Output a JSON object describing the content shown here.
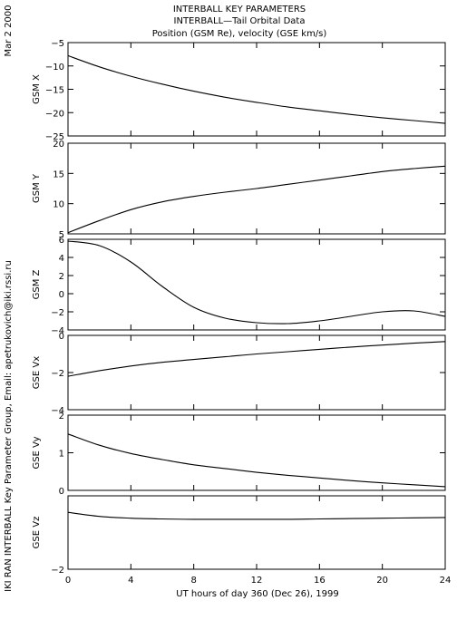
{
  "page": {
    "date_stamp": "Mar  2 2000",
    "credit": "IKI RAN INTERBALL Key Parameter Group, Email: apetrukovich@iki.rssi.ru",
    "title_lines": [
      "INTERBALL KEY PARAMETERS",
      "INTERBALL—Tail Orbital Data",
      "Position (GSM Re), velocity (GSE km/s)"
    ]
  },
  "chart_data": [
    {
      "type": "line",
      "ylabel": "GSM X",
      "ylim": [
        -25,
        -5
      ],
      "yticks": [
        -25,
        -20,
        -15,
        -10,
        -5
      ],
      "ytick_labels": [
        "−25",
        "−20",
        "−15",
        "−10",
        "−5"
      ],
      "series": [
        {
          "x": [
            0,
            2,
            4,
            6,
            8,
            10,
            12,
            14,
            16,
            18,
            20,
            22,
            24
          ],
          "y": [
            -7.8,
            -10.2,
            -12.2,
            -13.9,
            -15.4,
            -16.7,
            -17.8,
            -18.8,
            -19.6,
            -20.4,
            -21.1,
            -21.7,
            -22.3
          ]
        }
      ]
    },
    {
      "type": "line",
      "ylabel": "GSM Y",
      "ylim": [
        5,
        20
      ],
      "yticks": [
        5,
        10,
        15,
        20
      ],
      "ytick_labels": [
        "5",
        "10",
        "15",
        "20"
      ],
      "series": [
        {
          "x": [
            0,
            2,
            4,
            6,
            8,
            10,
            12,
            14,
            16,
            18,
            20,
            22,
            24
          ],
          "y": [
            5.2,
            7.2,
            9.0,
            10.3,
            11.2,
            11.9,
            12.5,
            13.2,
            13.9,
            14.6,
            15.3,
            15.8,
            16.2
          ]
        }
      ]
    },
    {
      "type": "line",
      "ylabel": "GSM Z",
      "ylim": [
        -4,
        6
      ],
      "yticks": [
        -4,
        -2,
        0,
        2,
        4,
        6
      ],
      "ytick_labels": [
        "−4",
        "−2",
        "0",
        "2",
        "4",
        "6"
      ],
      "series": [
        {
          "x": [
            0,
            2,
            4,
            6,
            8,
            10,
            12,
            14,
            16,
            18,
            20,
            22,
            24
          ],
          "y": [
            5.8,
            5.3,
            3.5,
            0.8,
            -1.5,
            -2.7,
            -3.2,
            -3.3,
            -3.0,
            -2.5,
            -2.0,
            -1.9,
            -2.5
          ]
        }
      ]
    },
    {
      "type": "line",
      "ylabel": "GSE Vx",
      "ylim": [
        -4,
        0
      ],
      "yticks": [
        -4,
        -2,
        0
      ],
      "ytick_labels": [
        "−4",
        "−2",
        "0"
      ],
      "series": [
        {
          "x": [
            0,
            2,
            4,
            6,
            8,
            10,
            12,
            14,
            16,
            18,
            20,
            22,
            24
          ],
          "y": [
            -2.2,
            -1.9,
            -1.65,
            -1.45,
            -1.3,
            -1.15,
            -1.0,
            -0.88,
            -0.75,
            -0.63,
            -0.52,
            -0.42,
            -0.33
          ]
        }
      ]
    },
    {
      "type": "line",
      "ylabel": "GSE Vy",
      "ylim": [
        0,
        2
      ],
      "yticks": [
        0,
        1,
        2
      ],
      "ytick_labels": [
        "0",
        "1",
        "2"
      ],
      "series": [
        {
          "x": [
            0,
            2,
            4,
            6,
            8,
            10,
            12,
            14,
            16,
            18,
            20,
            22,
            24
          ],
          "y": [
            1.5,
            1.2,
            0.98,
            0.82,
            0.68,
            0.58,
            0.48,
            0.4,
            0.33,
            0.26,
            0.2,
            0.15,
            0.1
          ]
        }
      ]
    },
    {
      "type": "line",
      "ylabel": "GSE Vz",
      "ylim": [
        -2,
        0
      ],
      "yticks": [
        -2,
        0
      ],
      "ytick_labels": [
        "−2",
        ""
      ],
      "series": [
        {
          "x": [
            0,
            2,
            4,
            6,
            8,
            10,
            12,
            14,
            16,
            18,
            20,
            22,
            24
          ],
          "y": [
            -0.45,
            -0.56,
            -0.61,
            -0.63,
            -0.64,
            -0.64,
            -0.64,
            -0.64,
            -0.63,
            -0.62,
            -0.61,
            -0.6,
            -0.59
          ]
        }
      ]
    }
  ],
  "x_axis": {
    "xlim": [
      0,
      24
    ],
    "xticks": [
      0,
      4,
      8,
      12,
      16,
      20,
      24
    ],
    "xtick_labels": [
      "0",
      "4",
      "8",
      "12",
      "16",
      "20",
      "24"
    ],
    "xlabel": "UT hours of day 360 (Dec 26), 1999"
  }
}
